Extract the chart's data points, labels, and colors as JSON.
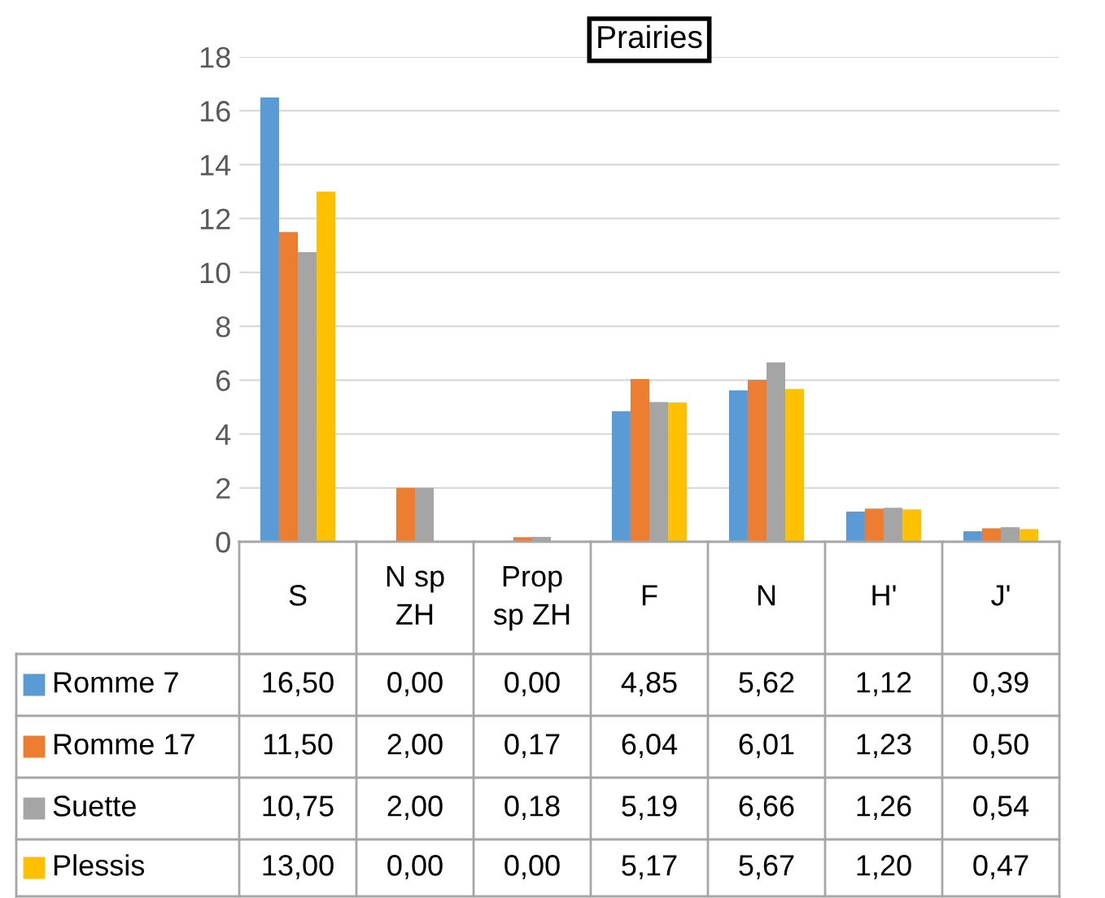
{
  "chart_data": {
    "type": "bar",
    "title": "Prairies",
    "categories": [
      "S",
      "N sp\nZH",
      "Prop\nsp ZH",
      "F",
      "N",
      "H'",
      "J'"
    ],
    "series": [
      {
        "name": "Romme 7",
        "color": "#5b9bd5",
        "values": [
          16.5,
          0,
          0,
          4.85,
          5.62,
          1.12,
          0.39
        ],
        "value_labels": [
          "16,50",
          "0,00",
          "0,00",
          "4,85",
          "5,62",
          "1,12",
          "0,39"
        ]
      },
      {
        "name": "Romme 17",
        "color": "#ed7d31",
        "values": [
          11.5,
          2,
          0.17,
          6.04,
          6.01,
          1.23,
          0.5
        ],
        "value_labels": [
          "11,50",
          "2,00",
          "0,17",
          "6,04",
          "6,01",
          "1,23",
          "0,50"
        ]
      },
      {
        "name": "Suette",
        "color": "#a5a5a5",
        "values": [
          10.75,
          2,
          0.18,
          5.19,
          6.66,
          1.26,
          0.54
        ],
        "value_labels": [
          "10,75",
          "2,00",
          "0,18",
          "5,19",
          "6,66",
          "1,26",
          "0,54"
        ]
      },
      {
        "name": "Plessis",
        "color": "#ffc000",
        "values": [
          13,
          0,
          0,
          5.17,
          5.67,
          1.2,
          0.47
        ],
        "value_labels": [
          "13,00",
          "0,00",
          "0,00",
          "5,17",
          "5,67",
          "1,20",
          "0,47"
        ]
      }
    ],
    "ylim": [
      0,
      18
    ],
    "yticks": [
      0,
      2,
      4,
      6,
      8,
      10,
      12,
      14,
      16,
      18
    ],
    "grid": "y",
    "legend": "bottom"
  }
}
